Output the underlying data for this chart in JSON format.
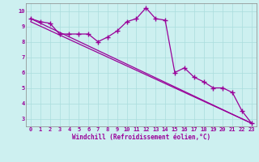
{
  "xlabel": "Windchill (Refroidissement éolien,°C)",
  "background_color": "#cdf0f0",
  "grid_color": "#aadddd",
  "line_color": "#990099",
  "spine_color": "#888888",
  "xlim": [
    -0.5,
    23.5
  ],
  "ylim": [
    2.5,
    10.5
  ],
  "xticks": [
    0,
    1,
    2,
    3,
    4,
    5,
    6,
    7,
    8,
    9,
    10,
    11,
    12,
    13,
    14,
    15,
    16,
    17,
    18,
    19,
    20,
    21,
    22,
    23
  ],
  "yticks": [
    3,
    4,
    5,
    6,
    7,
    8,
    9,
    10
  ],
  "series1_x": [
    0,
    1,
    2,
    3,
    4,
    5,
    6,
    7,
    8,
    9,
    10,
    11,
    12,
    13,
    14,
    15,
    16,
    17,
    18,
    19,
    20,
    21,
    22,
    23
  ],
  "series1_y": [
    9.5,
    9.3,
    9.2,
    8.5,
    8.5,
    8.5,
    8.5,
    8.0,
    8.3,
    8.7,
    9.3,
    9.5,
    10.2,
    9.5,
    9.4,
    6.0,
    6.3,
    5.7,
    5.4,
    5.0,
    5.0,
    4.7,
    3.5,
    2.7
  ],
  "series2_x": [
    0,
    23
  ],
  "series2_y": [
    9.5,
    2.7
  ],
  "series3_x": [
    0,
    23
  ],
  "series3_y": [
    9.3,
    2.7
  ],
  "marker": "+",
  "markersize": 4,
  "markeredgewidth": 1.0,
  "linewidth": 0.9,
  "tick_fontsize": 5.0,
  "xlabel_fontsize": 5.5
}
